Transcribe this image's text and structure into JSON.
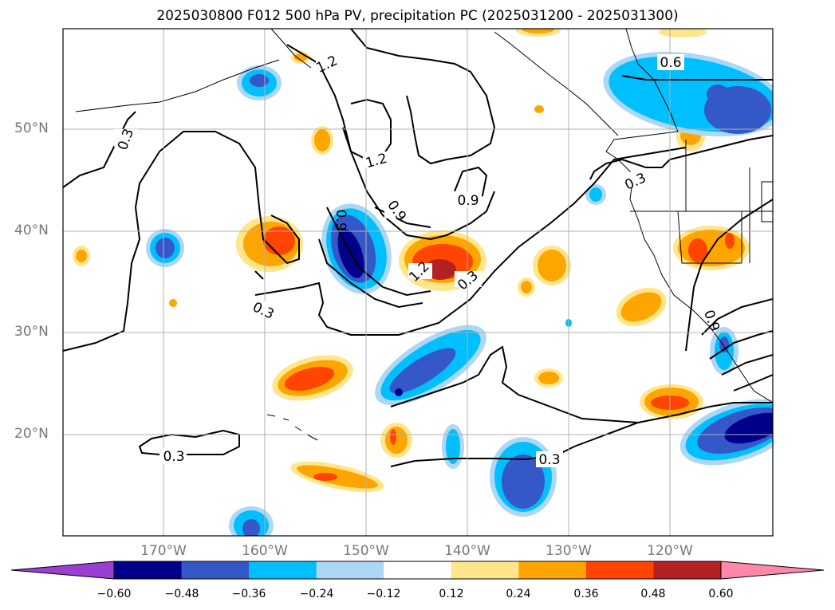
{
  "title": "2025030800 F012 500 hPa PV, precipitation PC (2025031200 - 2025031300)",
  "lat_labels": [
    "50°N",
    "40°N",
    "30°N",
    "20°N"
  ],
  "lon_labels": [
    "170°W",
    "160°W",
    "150°W",
    "140°W",
    "130°W",
    "120°W"
  ],
  "contour_labels": [
    "0.3",
    "0.3",
    "0.3",
    "0.3",
    "0.3",
    "0.3",
    "0.9",
    "0.9",
    "1.2",
    "1.2",
    "1.2",
    "0.6",
    "0.9",
    "0.9"
  ],
  "colorbar": {
    "ticks": [
      "−0.60",
      "−0.48",
      "−0.36",
      "−0.24",
      "−0.12",
      "0.12",
      "0.24",
      "0.36",
      "0.48",
      "0.60"
    ],
    "colors": [
      "#9a3fd0",
      "#00008b",
      "#3558c8",
      "#00bfff",
      "#add8f5",
      "#ffffff",
      "#ffe68a",
      "#ffa500",
      "#ff4500",
      "#b22222",
      "#ff88aa"
    ]
  }
}
